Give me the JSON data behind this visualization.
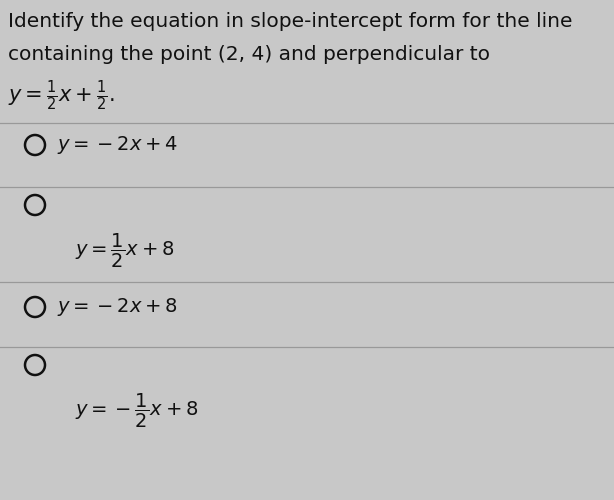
{
  "background_color": "#c8c8c8",
  "text_color": "#111111",
  "divider_color": "#999999",
  "circle_color": "#111111",
  "font_size_title": 14.5,
  "font_size_given": 15,
  "font_size_option": 14,
  "title_line1": "Identify the equation in slope-intercept form for the line",
  "title_line2": "containing the point (2, 4) and perpendicular to",
  "figsize": [
    6.14,
    5.0
  ],
  "dpi": 100
}
